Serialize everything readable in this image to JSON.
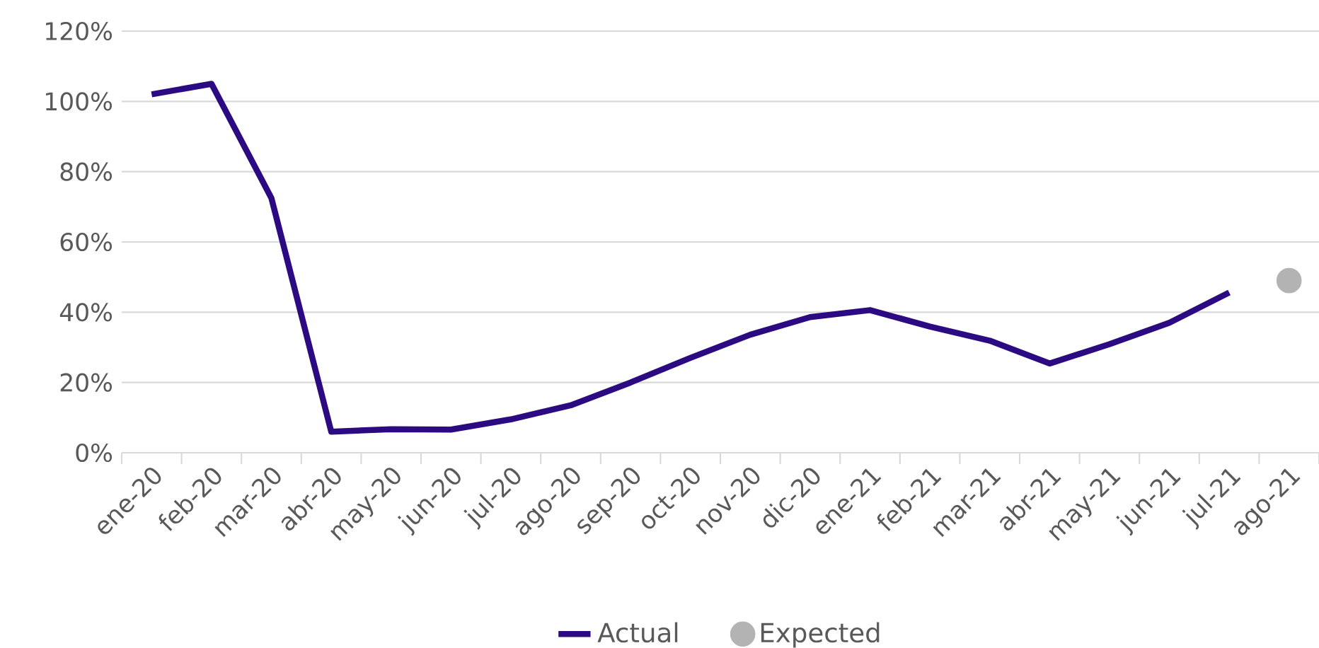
{
  "chart_data": {
    "type": "line",
    "categories": [
      "ene-20",
      "feb-20",
      "mar-20",
      "abr-20",
      "may-20",
      "jun-20",
      "jul-20",
      "ago-20",
      "sep-20",
      "oct-20",
      "nov-20",
      "dic-20",
      "ene-21",
      "feb-21",
      "mar-21",
      "abr-21",
      "may-21",
      "jun-21",
      "jul-21",
      "ago-21"
    ],
    "series": [
      {
        "name": "Actual",
        "color": "#2b0a82",
        "values": [
          102,
          105,
          72.5,
          6,
          6.7,
          6.6,
          9.5,
          13.5,
          20,
          27,
          33.6,
          38.6,
          40.6,
          35.9,
          31.9,
          25.4,
          30.9,
          37,
          45.6,
          null
        ]
      },
      {
        "name": "Expected",
        "type": "scatter",
        "marker": "circle",
        "color": "#b3b3b3",
        "values": [
          null,
          null,
          null,
          null,
          null,
          null,
          null,
          null,
          null,
          null,
          null,
          null,
          null,
          null,
          null,
          null,
          null,
          null,
          null,
          49
        ]
      }
    ],
    "ylim": [
      0,
      120
    ],
    "yticks": [
      {
        "value": 0,
        "label": "0%"
      },
      {
        "value": 20,
        "label": "20%"
      },
      {
        "value": 40,
        "label": "40%"
      },
      {
        "value": 60,
        "label": "60%"
      },
      {
        "value": 80,
        "label": "80%"
      },
      {
        "value": 100,
        "label": "100%"
      },
      {
        "value": 120,
        "label": "120%"
      }
    ],
    "grid": "y",
    "legend": "bottom"
  }
}
